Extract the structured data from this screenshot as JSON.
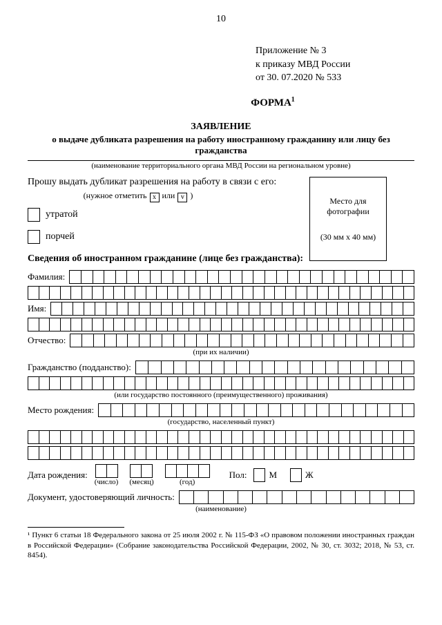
{
  "page_number": "10",
  "attachment": {
    "line1": "Приложение № 3",
    "line2": "к приказу МВД России",
    "line3": "от   30. 07.2020 № 533"
  },
  "form": {
    "heading": "ФОРМА",
    "sup": "1"
  },
  "title": "ЗАЯВЛЕНИЕ",
  "subtitle": "о выдаче дубликата разрешения на работу иностранному гражданину или лицу без гражданства",
  "org_hint": "(наименование территориального органа МВД России на региональном уровне)",
  "request_line": "Прошу выдать дубликат разрешения на работу в связи с его:",
  "check_hint_prefix": "(нужное отметить",
  "check_hint_or": "или",
  "check_hint_suffix": ")",
  "check_x": "x",
  "check_v": "v",
  "photo": {
    "caption1": "Место для фотографии",
    "caption2": "(30 мм x 40 мм)"
  },
  "option_loss": "утратой",
  "option_damage": "порчей",
  "section_about": "Сведения об иностранном гражданине (лице без гражданства):",
  "labels": {
    "surname": "Фамилия:",
    "name": "Имя:",
    "patronymic": "Отчество:",
    "patronymic_hint": "(при их наличии)",
    "citizenship": "Гражданство (подданство):",
    "citizenship_hint": "(или государство постоянного (преимущественного) проживания)",
    "birthplace": "Место рождения:",
    "birthplace_hint": "(государство, населенный пункт)",
    "birthdate": "Дата рождения:",
    "day": "(число)",
    "month": "(месяц)",
    "year": "(год)",
    "gender": "Пол:",
    "m": "М",
    "f": "Ж",
    "document": "Документ, удостоверяющий личность:",
    "document_hint": "(наименование)"
  },
  "footnote": "¹ Пункт 6 статьи 18 Федерального закона от 25 июля 2002 г. № 115-ФЗ «О правовом положении иностранных граждан в Российской Федерации» (Собрание законодательства Российской Федерации, 2002, № 30, ст. 3032; 2018, № 53, ст. 8454).",
  "cells": {
    "full_row": 36,
    "surname_after": 30,
    "name_after": 33,
    "patronymic_after": 30,
    "citizenship_after": 22,
    "birthplace_after": 26,
    "document_after": 16
  }
}
